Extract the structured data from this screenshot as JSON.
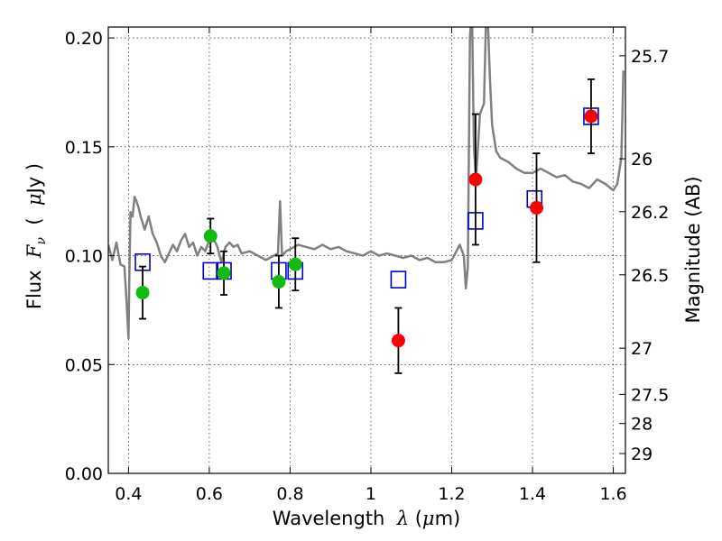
{
  "chart_data": {
    "type": "scatter",
    "xlabel": "Wavelength  λ (μm)",
    "ylabel": "Flux  F_ν  ( μJy )",
    "y2label": "Magnitude (AB)",
    "xlim": [
      0.35,
      1.63
    ],
    "ylim": [
      0.0,
      0.205
    ],
    "grid": true,
    "x_ticks": [
      0.4,
      0.6,
      0.8,
      1.0,
      1.2,
      1.4,
      1.6
    ],
    "x_tick_labels": [
      "0.4",
      "0.6",
      "0.8",
      "1",
      "1.2",
      "1.4",
      "1.6"
    ],
    "y_ticks": [
      0.0,
      0.05,
      0.1,
      0.15,
      0.2
    ],
    "y_tick_labels": [
      "0.00",
      "0.05",
      "0.10",
      "0.15",
      "0.20"
    ],
    "mag_ticks": [
      {
        "label": "25.7",
        "flux": 0.1918
      },
      {
        "label": "26",
        "flux": 0.1445
      },
      {
        "label": "26.2",
        "flux": 0.1202
      },
      {
        "label": "26.5",
        "flux": 0.0912
      },
      {
        "label": "27",
        "flux": 0.0575
      },
      {
        "label": "27.5",
        "flux": 0.0363
      },
      {
        "label": "28",
        "flux": 0.0229
      },
      {
        "label": "29",
        "flux": 0.0091
      }
    ],
    "series": [
      {
        "marker": "open-square",
        "color": "#0000cc",
        "points": [
          {
            "x": 0.435,
            "y": 0.097
          },
          {
            "x": 0.603,
            "y": 0.093
          },
          {
            "x": 0.636,
            "y": 0.093
          },
          {
            "x": 0.772,
            "y": 0.093
          },
          {
            "x": 0.813,
            "y": 0.093
          },
          {
            "x": 1.068,
            "y": 0.089
          },
          {
            "x": 1.259,
            "y": 0.116
          },
          {
            "x": 1.405,
            "y": 0.126
          },
          {
            "x": 1.545,
            "y": 0.164
          }
        ]
      },
      {
        "marker": "filled-circle",
        "color": "#11bb11",
        "points": [
          {
            "x": 0.435,
            "y": 0.083,
            "err": 0.012
          },
          {
            "x": 0.603,
            "y": 0.109,
            "err": 0.008
          },
          {
            "x": 0.636,
            "y": 0.092,
            "err": 0.01
          },
          {
            "x": 0.772,
            "y": 0.088,
            "err": 0.012
          },
          {
            "x": 0.813,
            "y": 0.096,
            "err": 0.012
          }
        ]
      },
      {
        "marker": "filled-circle",
        "color": "#ff0000",
        "points": [
          {
            "x": 1.068,
            "y": 0.061,
            "err": 0.015
          },
          {
            "x": 1.259,
            "y": 0.135,
            "err": 0.03
          },
          {
            "x": 1.41,
            "y": 0.122,
            "err": 0.025
          },
          {
            "x": 1.545,
            "y": 0.164,
            "err": 0.017
          }
        ]
      }
    ],
    "model_spectrum": {
      "color": "#808080",
      "x": [
        0.35,
        0.36,
        0.37,
        0.38,
        0.39,
        0.395,
        0.4,
        0.402,
        0.405,
        0.41,
        0.415,
        0.42,
        0.425,
        0.43,
        0.435,
        0.44,
        0.45,
        0.46,
        0.47,
        0.48,
        0.49,
        0.5,
        0.51,
        0.52,
        0.53,
        0.54,
        0.55,
        0.56,
        0.57,
        0.58,
        0.59,
        0.6,
        0.61,
        0.62,
        0.63,
        0.64,
        0.65,
        0.66,
        0.67,
        0.68,
        0.7,
        0.72,
        0.74,
        0.76,
        0.77,
        0.775,
        0.78,
        0.79,
        0.8,
        0.82,
        0.84,
        0.86,
        0.88,
        0.9,
        0.92,
        0.94,
        0.96,
        0.98,
        1.0,
        1.02,
        1.04,
        1.06,
        1.08,
        1.1,
        1.12,
        1.14,
        1.16,
        1.18,
        1.2,
        1.22,
        1.23,
        1.235,
        1.24,
        1.245,
        1.25,
        1.255,
        1.26,
        1.265,
        1.27,
        1.28,
        1.285,
        1.29,
        1.295,
        1.3,
        1.31,
        1.32,
        1.34,
        1.36,
        1.38,
        1.4,
        1.42,
        1.44,
        1.46,
        1.48,
        1.5,
        1.52,
        1.54,
        1.56,
        1.58,
        1.6,
        1.61,
        1.62,
        1.625
      ],
      "y": [
        0.105,
        0.098,
        0.106,
        0.096,
        0.095,
        0.08,
        0.062,
        0.09,
        0.12,
        0.118,
        0.127,
        0.125,
        0.122,
        0.118,
        0.115,
        0.112,
        0.118,
        0.11,
        0.106,
        0.1,
        0.097,
        0.101,
        0.105,
        0.102,
        0.107,
        0.11,
        0.104,
        0.106,
        0.1,
        0.104,
        0.102,
        0.107,
        0.108,
        0.104,
        0.097,
        0.104,
        0.106,
        0.104,
        0.105,
        0.101,
        0.102,
        0.1,
        0.098,
        0.1,
        0.101,
        0.125,
        0.1,
        0.102,
        0.103,
        0.105,
        0.104,
        0.103,
        0.105,
        0.103,
        0.104,
        0.102,
        0.101,
        0.1,
        0.102,
        0.1,
        0.101,
        0.1,
        0.099,
        0.1,
        0.098,
        0.099,
        0.097,
        0.097,
        0.098,
        0.105,
        0.1,
        0.085,
        0.095,
        0.2,
        0.215,
        0.15,
        0.135,
        0.15,
        0.165,
        0.17,
        0.21,
        0.205,
        0.18,
        0.16,
        0.148,
        0.145,
        0.143,
        0.14,
        0.138,
        0.138,
        0.14,
        0.138,
        0.136,
        0.137,
        0.134,
        0.133,
        0.131,
        0.135,
        0.133,
        0.13,
        0.133,
        0.145,
        0.185
      ]
    }
  }
}
